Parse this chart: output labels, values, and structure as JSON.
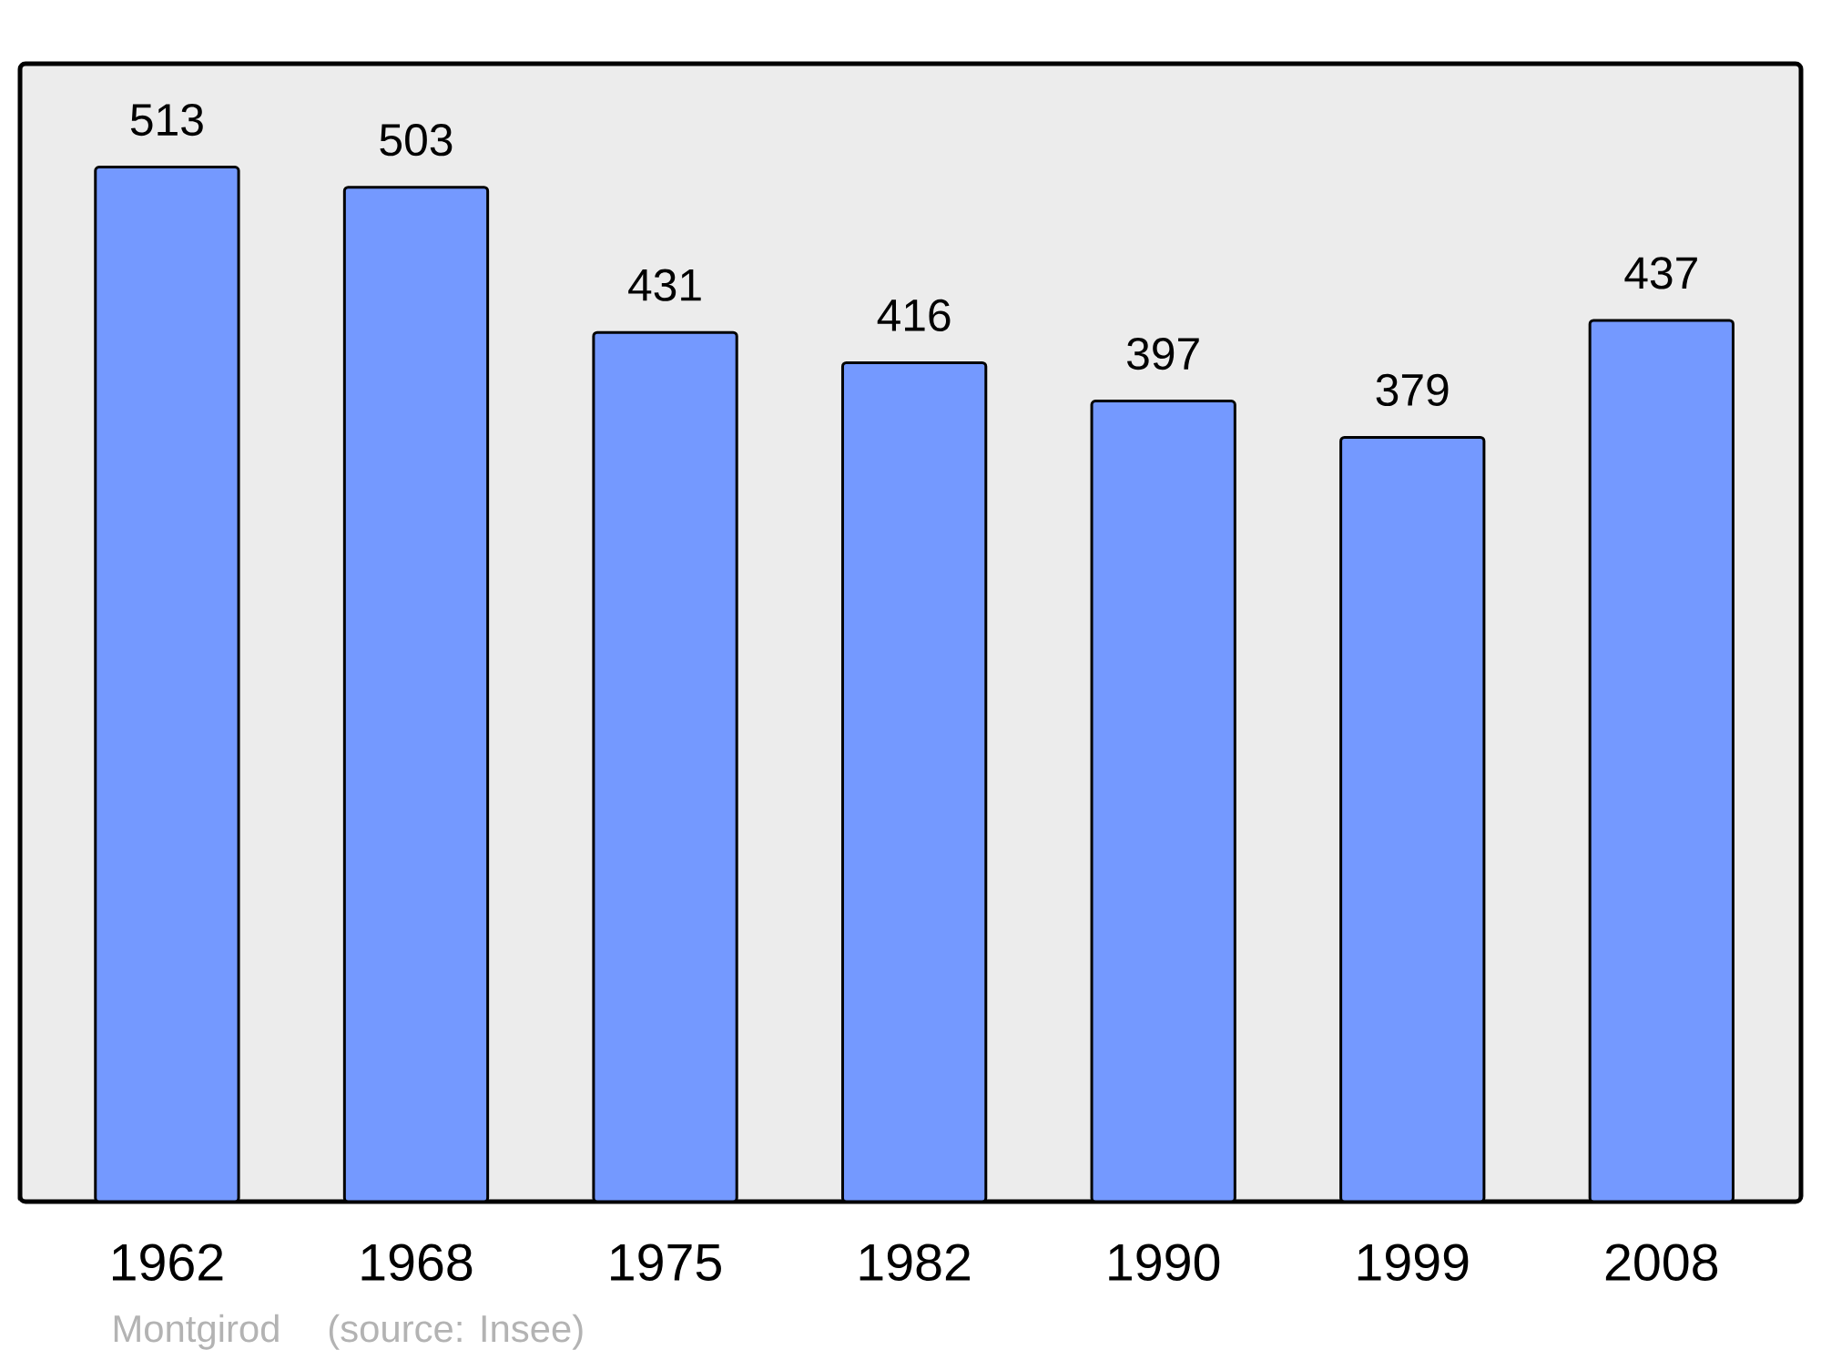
{
  "chart_data": {
    "type": "bar",
    "categories": [
      "1962",
      "1968",
      "1975",
      "1982",
      "1990",
      "1999",
      "2008"
    ],
    "values": [
      513,
      503,
      431,
      416,
      397,
      379,
      437
    ],
    "color": "#7499ff",
    "data_labels": true,
    "annotations": [
      "Montgirod",
      "(source: Insee)"
    ]
  }
}
